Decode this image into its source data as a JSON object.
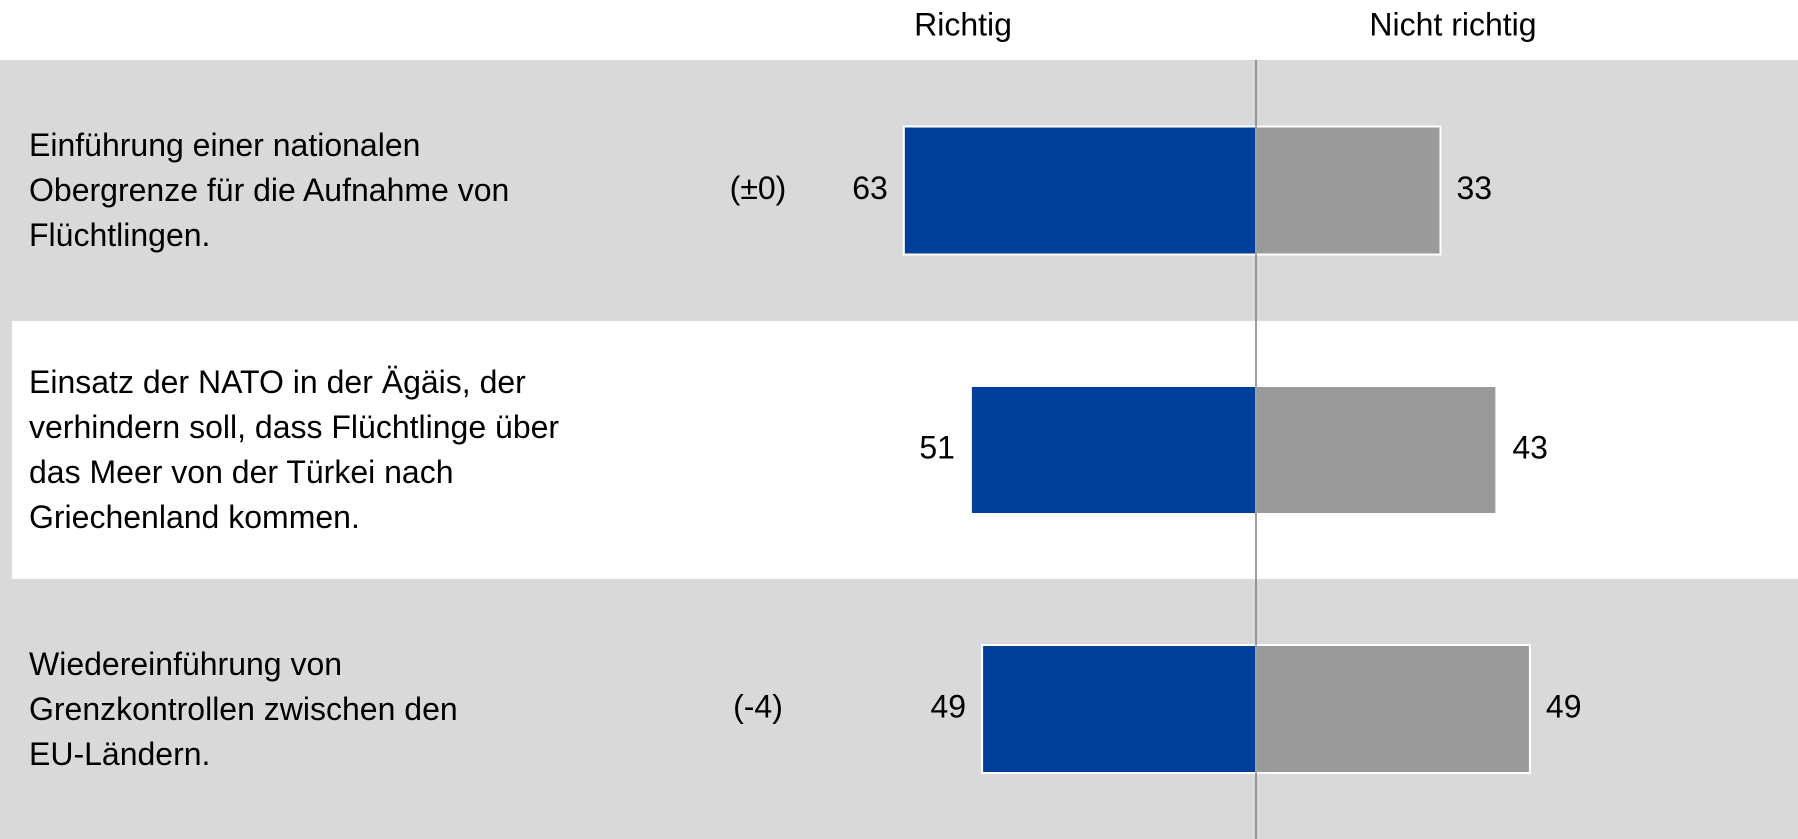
{
  "chart_data": {
    "type": "diverging-bar",
    "categories": [
      "Einführung einer nationalen\nObergrenze für die Aufnahme von\nFlüchtlingen.",
      "Einsatz der NATO in der Ägäis, der\nverhindern soll, dass Flüchtlinge über\ndas Meer von der Türkei nach\nGriechenland kommen.",
      "Wiedereinführung von\nGrenzkontrollen zwischen den\nEU-Ländern."
    ],
    "changes": [
      "(±0)",
      null,
      "(-4)"
    ],
    "series": [
      {
        "name": "Richtig",
        "color": "#00409a",
        "values": [
          63,
          51,
          49
        ]
      },
      {
        "name": "Nicht richtig",
        "color": "#9a9a9a",
        "values": [
          33,
          43,
          49
        ]
      }
    ]
  }
}
